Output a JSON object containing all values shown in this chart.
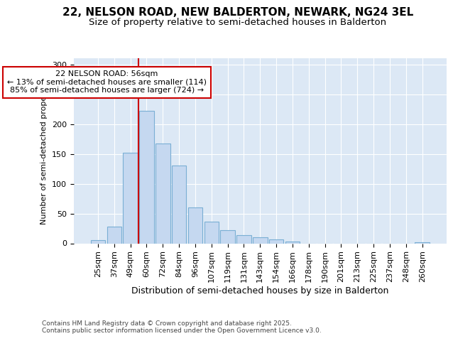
{
  "title1": "22, NELSON ROAD, NEW BALDERTON, NEWARK, NG24 3EL",
  "title2": "Size of property relative to semi-detached houses in Balderton",
  "xlabel": "Distribution of semi-detached houses by size in Balderton",
  "ylabel": "Number of semi-detached properties",
  "footnote": "Contains HM Land Registry data © Crown copyright and database right 2025.\nContains public sector information licensed under the Open Government Licence v3.0.",
  "categories": [
    "25sqm",
    "37sqm",
    "49sqm",
    "60sqm",
    "72sqm",
    "84sqm",
    "96sqm",
    "107sqm",
    "119sqm",
    "131sqm",
    "143sqm",
    "154sqm",
    "166sqm",
    "178sqm",
    "190sqm",
    "201sqm",
    "213sqm",
    "225sqm",
    "237sqm",
    "248sqm",
    "260sqm"
  ],
  "values": [
    5,
    28,
    152,
    222,
    168,
    130,
    60,
    36,
    22,
    14,
    10,
    6,
    3,
    0,
    0,
    0,
    0,
    0,
    0,
    0,
    2
  ],
  "bar_color": "#c5d8f0",
  "bar_edge_color": "#7aafd4",
  "vline_color": "#cc0000",
  "vline_x_index": 2.5,
  "annotation_text": "22 NELSON ROAD: 56sqm\n← 13% of semi-detached houses are smaller (114)\n85% of semi-detached houses are larger (724) →",
  "annotation_box_facecolor": "#ffffff",
  "annotation_box_edgecolor": "#cc0000",
  "ylim": [
    0,
    310
  ],
  "yticks": [
    0,
    50,
    100,
    150,
    200,
    250,
    300
  ],
  "bg_color": "#ffffff",
  "plot_bg_color": "#dce8f5",
  "title1_fontsize": 11,
  "title2_fontsize": 9.5,
  "xlabel_fontsize": 9,
  "ylabel_fontsize": 8,
  "tick_fontsize": 8,
  "annotation_fontsize": 8,
  "footnote_fontsize": 6.5
}
